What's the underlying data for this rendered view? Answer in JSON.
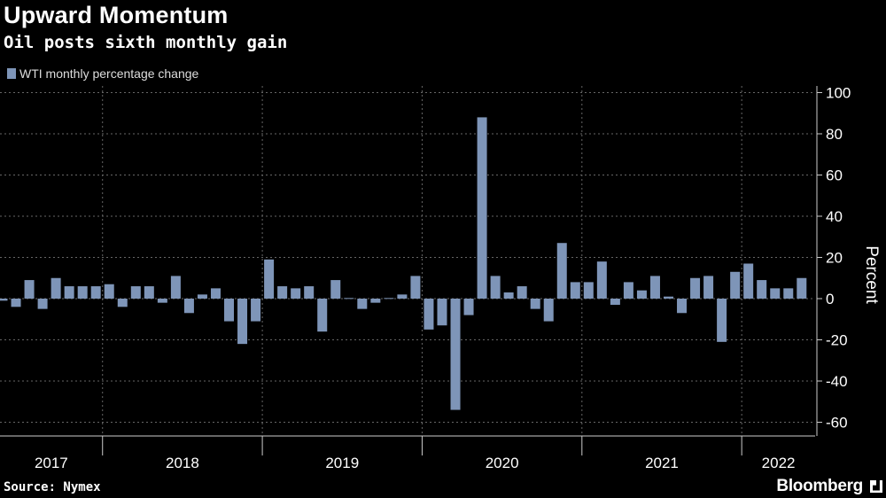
{
  "header": {
    "title": "Upward Momentum",
    "subtitle": "Oil posts sixth monthly gain"
  },
  "footer": {
    "source": "Source: Nymex",
    "brand": "Bloomberg"
  },
  "colors": {
    "bar": "#7e95b8",
    "grid": "#666666",
    "background": "#000000"
  },
  "chart_data": {
    "type": "bar",
    "title": "Upward Momentum",
    "subtitle": "Oil posts sixth monthly gain",
    "legend": [
      "WTI monthly percentage change"
    ],
    "legend_placement": "top-left",
    "ylabel": "Percent",
    "ylim": [
      -65,
      105
    ],
    "yticks": [
      -60,
      -40,
      -20,
      0,
      20,
      40,
      60,
      80,
      100
    ],
    "ytick_labels": [
      "-60",
      "-40",
      "-20",
      "0",
      "20",
      "40",
      "60",
      "80",
      "100"
    ],
    "xtick_labels": [
      "2017",
      "2018",
      "2019",
      "2020",
      "2021",
      "2022"
    ],
    "x_start": "2017-05",
    "x_end": "2022-06",
    "grid": true,
    "series": [
      {
        "name": "WTI monthly percentage change",
        "values": [
          -1,
          -4,
          9,
          -5,
          10,
          6,
          6,
          6,
          7,
          -4,
          6,
          6,
          -2,
          11,
          -7,
          2,
          5,
          -11,
          -22,
          -11,
          19,
          6,
          5,
          6,
          -16,
          9,
          0.3,
          -5,
          -2,
          0.3,
          2,
          11,
          -15,
          -13,
          -54,
          -8,
          88,
          11,
          3,
          6,
          -5,
          -11,
          27,
          8,
          8,
          18,
          -3,
          8,
          4,
          11,
          1,
          -7,
          10,
          11,
          -21,
          13,
          17,
          9,
          5,
          5,
          10
        ]
      }
    ]
  }
}
